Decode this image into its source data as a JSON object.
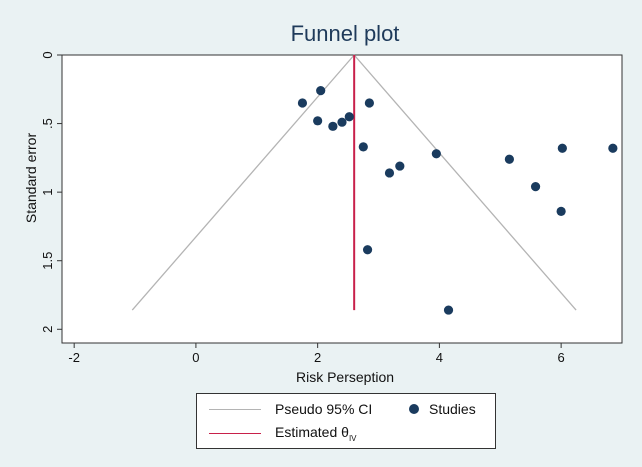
{
  "chart_data": {
    "type": "scatter",
    "title": "Funnel plot",
    "xlabel": "Risk Perseption",
    "ylabel": "Standard error",
    "xlim": [
      -2.2,
      7.0
    ],
    "ylim": [
      2.1,
      0
    ],
    "y_reversed": true,
    "xticks": [
      -2,
      0,
      2,
      4,
      6
    ],
    "yticks": [
      0,
      0.5,
      1,
      1.5,
      2
    ],
    "xtick_labels": [
      "-2",
      "0",
      "2",
      "4",
      "6"
    ],
    "ytick_labels": [
      "0",
      ".5",
      "1",
      "1.5",
      "2"
    ],
    "pooled_estimate": 2.6,
    "max_se": 1.86,
    "ci_multiplier": 1.96,
    "points": [
      {
        "x": 1.75,
        "y": 0.35
      },
      {
        "x": 2.05,
        "y": 0.26
      },
      {
        "x": 2.85,
        "y": 0.35
      },
      {
        "x": 2.0,
        "y": 0.48
      },
      {
        "x": 2.25,
        "y": 0.52
      },
      {
        "x": 2.4,
        "y": 0.49
      },
      {
        "x": 2.52,
        "y": 0.45
      },
      {
        "x": 2.75,
        "y": 0.67
      },
      {
        "x": 3.95,
        "y": 0.72
      },
      {
        "x": 3.35,
        "y": 0.81
      },
      {
        "x": 3.18,
        "y": 0.86
      },
      {
        "x": 5.15,
        "y": 0.76
      },
      {
        "x": 6.02,
        "y": 0.68
      },
      {
        "x": 6.85,
        "y": 0.68
      },
      {
        "x": 5.58,
        "y": 0.96
      },
      {
        "x": 6.0,
        "y": 1.14
      },
      {
        "x": 2.82,
        "y": 1.42
      },
      {
        "x": 4.15,
        "y": 1.86
      }
    ],
    "legend": {
      "ci_label": "Pseudo 95% CI",
      "studies_label": "Studies",
      "estimate_label": "Estimated θ",
      "estimate_sub": "IV"
    },
    "colors": {
      "background": "#eaf2f3",
      "plot_area": "#ffffff",
      "ci_line": "#b4b4b4",
      "estimate_line": "#c8204a",
      "points": "#1a3b5e",
      "title": "#1e3a5a"
    },
    "grid": false,
    "legend_position": "bottom"
  }
}
